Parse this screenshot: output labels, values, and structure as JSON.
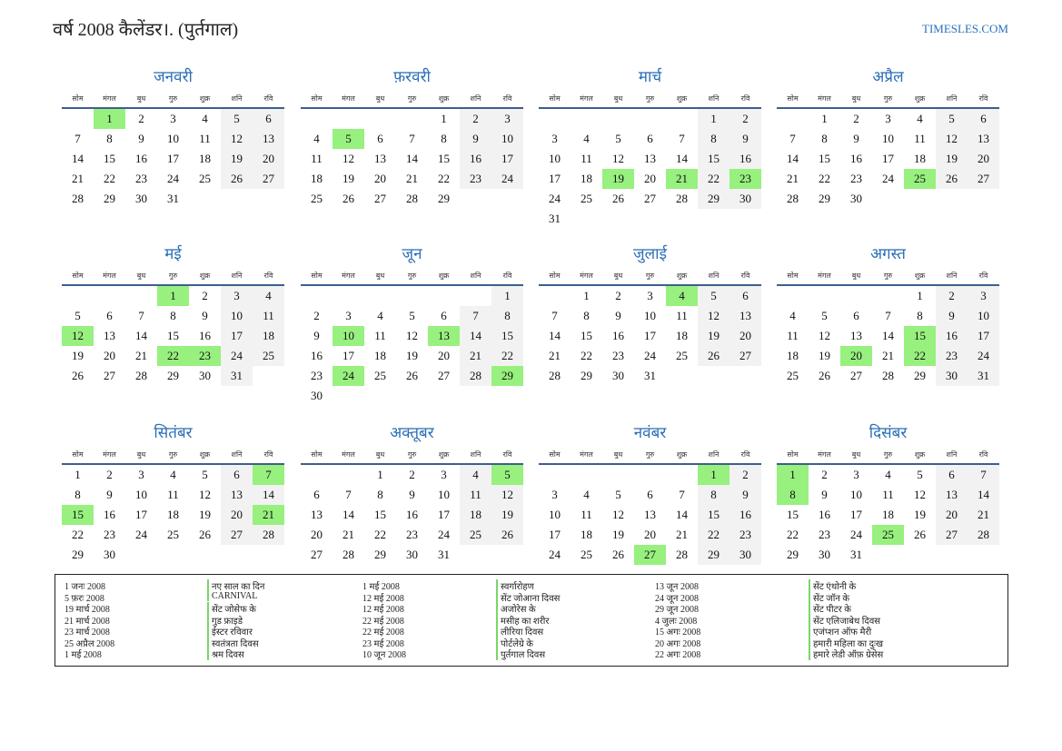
{
  "header": {
    "title": "वर्ष 2008 कैलेंडर।. (पुर्तगाल)",
    "site": "TIMESLES.COM"
  },
  "weekdays": [
    "सोम",
    "मंगल",
    "बुध",
    "गुरु",
    "शुक्र",
    "शनि",
    "रवि"
  ],
  "months": [
    {
      "name": "जनवरी",
      "weeks": [
        [
          null,
          1,
          2,
          3,
          4,
          5,
          6
        ],
        [
          7,
          8,
          9,
          10,
          11,
          12,
          13
        ],
        [
          14,
          15,
          16,
          17,
          18,
          19,
          20
        ],
        [
          21,
          22,
          23,
          24,
          25,
          26,
          27
        ],
        [
          28,
          29,
          30,
          31,
          null,
          null,
          null
        ]
      ],
      "highlight": [
        1
      ]
    },
    {
      "name": "फ़रवरी",
      "weeks": [
        [
          null,
          null,
          null,
          null,
          1,
          2,
          3
        ],
        [
          4,
          5,
          6,
          7,
          8,
          9,
          10
        ],
        [
          11,
          12,
          13,
          14,
          15,
          16,
          17
        ],
        [
          18,
          19,
          20,
          21,
          22,
          23,
          24
        ],
        [
          25,
          26,
          27,
          28,
          29,
          null,
          null
        ]
      ],
      "highlight": [
        5
      ]
    },
    {
      "name": "मार्च",
      "weeks": [
        [
          null,
          null,
          null,
          null,
          null,
          1,
          2
        ],
        [
          3,
          4,
          5,
          6,
          7,
          8,
          9
        ],
        [
          10,
          11,
          12,
          13,
          14,
          15,
          16
        ],
        [
          17,
          18,
          19,
          20,
          21,
          22,
          23
        ],
        [
          24,
          25,
          26,
          27,
          28,
          29,
          30
        ],
        [
          31,
          null,
          null,
          null,
          null,
          null,
          null
        ]
      ],
      "highlight": [
        19,
        21,
        23
      ]
    },
    {
      "name": "अप्रैल",
      "weeks": [
        [
          null,
          1,
          2,
          3,
          4,
          5,
          6
        ],
        [
          7,
          8,
          9,
          10,
          11,
          12,
          13
        ],
        [
          14,
          15,
          16,
          17,
          18,
          19,
          20
        ],
        [
          21,
          22,
          23,
          24,
          25,
          26,
          27
        ],
        [
          28,
          29,
          30,
          null,
          null,
          null,
          null
        ]
      ],
      "highlight": [
        25
      ]
    },
    {
      "name": "मई",
      "weeks": [
        [
          null,
          null,
          null,
          1,
          2,
          3,
          4
        ],
        [
          5,
          6,
          7,
          8,
          9,
          10,
          11
        ],
        [
          12,
          13,
          14,
          15,
          16,
          17,
          18
        ],
        [
          19,
          20,
          21,
          22,
          23,
          24,
          25
        ],
        [
          26,
          27,
          28,
          29,
          30,
          31,
          null
        ]
      ],
      "highlight": [
        1,
        12,
        22,
        23
      ]
    },
    {
      "name": "जून",
      "weeks": [
        [
          null,
          null,
          null,
          null,
          null,
          null,
          1
        ],
        [
          2,
          3,
          4,
          5,
          6,
          7,
          8
        ],
        [
          9,
          10,
          11,
          12,
          13,
          14,
          15
        ],
        [
          16,
          17,
          18,
          19,
          20,
          21,
          22
        ],
        [
          23,
          24,
          25,
          26,
          27,
          28,
          29
        ],
        [
          30,
          null,
          null,
          null,
          null,
          null,
          null
        ]
      ],
      "highlight": [
        10,
        13,
        24,
        29
      ]
    },
    {
      "name": "जुलाई",
      "weeks": [
        [
          null,
          1,
          2,
          3,
          4,
          5,
          6
        ],
        [
          7,
          8,
          9,
          10,
          11,
          12,
          13
        ],
        [
          14,
          15,
          16,
          17,
          18,
          19,
          20
        ],
        [
          21,
          22,
          23,
          24,
          25,
          26,
          27
        ],
        [
          28,
          29,
          30,
          31,
          null,
          null,
          null
        ]
      ],
      "highlight": [
        4
      ]
    },
    {
      "name": "अगस्त",
      "weeks": [
        [
          null,
          null,
          null,
          null,
          1,
          2,
          3
        ],
        [
          4,
          5,
          6,
          7,
          8,
          9,
          10
        ],
        [
          11,
          12,
          13,
          14,
          15,
          16,
          17
        ],
        [
          18,
          19,
          20,
          21,
          22,
          23,
          24
        ],
        [
          25,
          26,
          27,
          28,
          29,
          30,
          31
        ]
      ],
      "highlight": [
        15,
        20,
        22
      ]
    },
    {
      "name": "सितंबर",
      "weeks": [
        [
          1,
          2,
          3,
          4,
          5,
          6,
          7
        ],
        [
          8,
          9,
          10,
          11,
          12,
          13,
          14
        ],
        [
          15,
          16,
          17,
          18,
          19,
          20,
          21
        ],
        [
          22,
          23,
          24,
          25,
          26,
          27,
          28
        ],
        [
          29,
          30,
          null,
          null,
          null,
          null,
          null
        ]
      ],
      "highlight": [
        7,
        15,
        21
      ]
    },
    {
      "name": "अक्तूबर",
      "weeks": [
        [
          null,
          null,
          1,
          2,
          3,
          4,
          5
        ],
        [
          6,
          7,
          8,
          9,
          10,
          11,
          12
        ],
        [
          13,
          14,
          15,
          16,
          17,
          18,
          19
        ],
        [
          20,
          21,
          22,
          23,
          24,
          25,
          26
        ],
        [
          27,
          28,
          29,
          30,
          31,
          null,
          null
        ]
      ],
      "highlight": [
        5
      ]
    },
    {
      "name": "नवंबर",
      "weeks": [
        [
          null,
          null,
          null,
          null,
          null,
          1,
          2
        ],
        [
          3,
          4,
          5,
          6,
          7,
          8,
          9
        ],
        [
          10,
          11,
          12,
          13,
          14,
          15,
          16
        ],
        [
          17,
          18,
          19,
          20,
          21,
          22,
          23
        ],
        [
          24,
          25,
          26,
          27,
          28,
          29,
          30
        ]
      ],
      "highlight": [
        1,
        27
      ]
    },
    {
      "name": "दिसंबर",
      "weeks": [
        [
          1,
          2,
          3,
          4,
          5,
          6,
          7
        ],
        [
          8,
          9,
          10,
          11,
          12,
          13,
          14
        ],
        [
          15,
          16,
          17,
          18,
          19,
          20,
          21
        ],
        [
          22,
          23,
          24,
          25,
          26,
          27,
          28
        ],
        [
          29,
          30,
          31,
          null,
          null,
          null,
          null
        ]
      ],
      "highlight": [
        1,
        8,
        25
      ]
    }
  ],
  "holidays": [
    {
      "date": "1 जनः 2008",
      "name": "नए साल का दिन"
    },
    {
      "date": "5 फ़रः 2008",
      "name": "CARNIVAL"
    },
    {
      "date": "19 मार्च 2008",
      "name": "सेंट जोसेफ के"
    },
    {
      "date": "21 मार्च 2008",
      "name": "गुड फ्राइडे"
    },
    {
      "date": "23 मार्च 2008",
      "name": "ईस्टर रविवार"
    },
    {
      "date": "25 अप्रैल 2008",
      "name": "स्वतंत्रता दिवस"
    },
    {
      "date": "1 मई 2008",
      "name": "श्रम दिवस"
    },
    {
      "date": "1 मई 2008",
      "name": "स्वर्गारोहण"
    },
    {
      "date": "12 मई 2008",
      "name": "सेंट जोआना दिवस"
    },
    {
      "date": "12 मई 2008",
      "name": "अजोरेस के"
    },
    {
      "date": "22 मई 2008",
      "name": "मसीह का शरीर"
    },
    {
      "date": "22 मई 2008",
      "name": "लीरिया दिवस"
    },
    {
      "date": "23 मई 2008",
      "name": "पोर्टलेग्रे के"
    },
    {
      "date": "10 जून 2008",
      "name": "पुर्तगाल दिवस"
    },
    {
      "date": "13 जून 2008",
      "name": "सेंट एंथोनी के"
    },
    {
      "date": "24 जून 2008",
      "name": "सेंट जॉन के"
    },
    {
      "date": "29 जून 2008",
      "name": "सेंट पीटर के"
    },
    {
      "date": "4 जुलः 2008",
      "name": "सेंट एलिजाबेथ दिवस"
    },
    {
      "date": "15 अगः 2008",
      "name": "एजंप्शन ऑफ मैरी"
    },
    {
      "date": "20 अगः 2008",
      "name": "हमारी महिला का दुःख"
    },
    {
      "date": "22 अगः 2008",
      "name": "हमारे लेडी ऑफ़ ग्रेसेस"
    }
  ]
}
